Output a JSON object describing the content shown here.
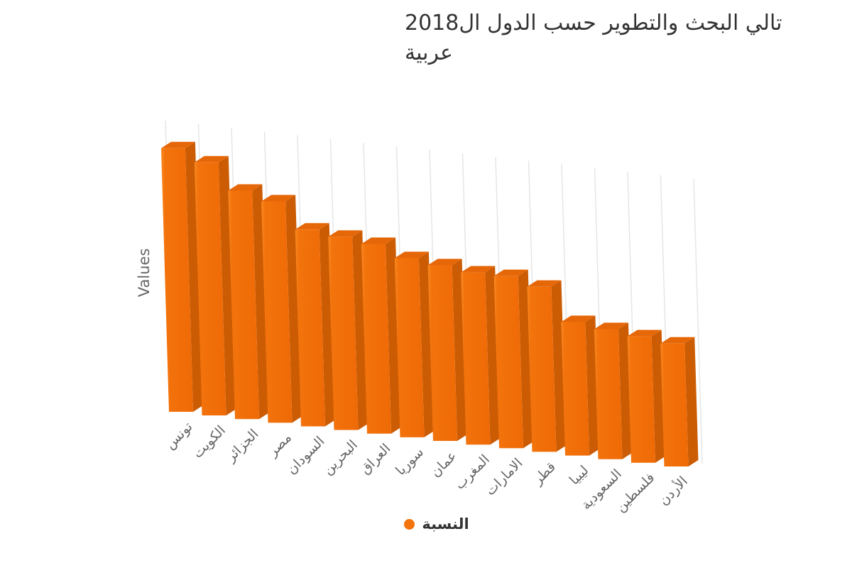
{
  "title": {
    "line1": "تالي البحث والتطوير حسب الدول ال2018",
    "line2": "عربية"
  },
  "yaxis": {
    "label": "Values"
  },
  "legend": {
    "label": "النسبة"
  },
  "chart_data": {
    "type": "bar",
    "style": "3d-column",
    "title": "تالي البحث والتطوير حسب الدول ال2018 عربية",
    "xlabel": "",
    "ylabel": "Values",
    "legend_entries": [
      "النسبة"
    ],
    "legend_position": "bottom-center",
    "grid": true,
    "categories": [
      "تونس",
      "الكويت",
      "الجزائر",
      "مصر",
      "السودان",
      "البحرين",
      "العراق",
      "سوريا",
      "عمان",
      "المغرب",
      "الامارات",
      "قطر",
      "ليبيا",
      "السعودية",
      "فلسطين",
      "الأردن"
    ],
    "values": [
      75,
      72,
      65,
      63,
      56,
      55,
      54,
      51,
      50,
      49,
      49,
      47,
      38,
      37,
      36,
      35
    ],
    "ylim": [
      0,
      80
    ],
    "colors": {
      "front": "#f3730c",
      "front_light": "#fb8a22",
      "front_dark": "#ee6a06",
      "top": "#e66708",
      "side": "#cc5c04",
      "grid": "#e6e6e6",
      "label": "#666666",
      "title": "#333333"
    }
  }
}
